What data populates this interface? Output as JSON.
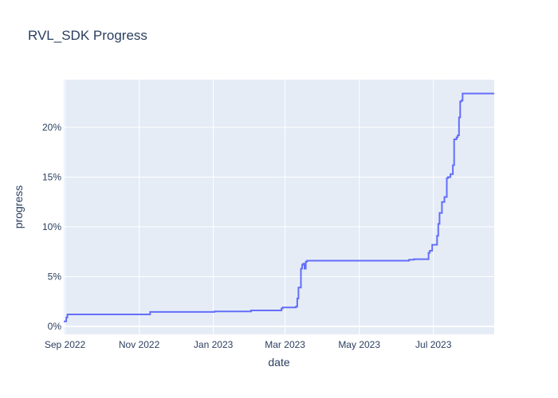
{
  "chart_data": {
    "type": "line",
    "title": "RVL_SDK Progress",
    "xlabel": "date",
    "ylabel": "progress",
    "grid": true,
    "legend": "none",
    "line_shape": "step",
    "colors": {
      "line": "#636efa",
      "plot_bg": "#e5ecf6",
      "grid": "#ffffff",
      "text": "#2a3f5f"
    },
    "x_ticks": [
      {
        "value": "2022-09-01",
        "label": "Sep 2022"
      },
      {
        "value": "2022-11-01",
        "label": "Nov 2022"
      },
      {
        "value": "2023-01-01",
        "label": "Jan 2023"
      },
      {
        "value": "2023-03-01",
        "label": "Mar 2023"
      },
      {
        "value": "2023-05-01",
        "label": "May 2023"
      },
      {
        "value": "2023-07-01",
        "label": "Jul 2023"
      }
    ],
    "xlim": [
      "2022-08-31",
      "2023-08-20"
    ],
    "y_ticks": [
      {
        "value": 0,
        "label": "0%"
      },
      {
        "value": 5,
        "label": "5%"
      },
      {
        "value": 10,
        "label": "10%"
      },
      {
        "value": 15,
        "label": "15%"
      },
      {
        "value": 20,
        "label": "20%"
      }
    ],
    "ylim": [
      -0.8,
      24.8
    ],
    "series": [
      {
        "x": [
          "2022-08-31",
          "2022-09-02",
          "2022-09-03",
          "2022-11-07",
          "2022-11-10",
          "2023-01-02",
          "2023-02-01",
          "2023-02-26",
          "2023-02-27",
          "2023-03-10",
          "2023-03-11",
          "2023-03-12",
          "2023-03-13",
          "2023-03-14",
          "2023-03-15",
          "2023-03-16",
          "2023-03-17",
          "2023-03-18",
          "2023-03-19",
          "2023-04-20",
          "2023-06-11",
          "2023-06-15",
          "2023-06-27",
          "2023-06-28",
          "2023-06-30",
          "2023-07-04",
          "2023-07-05",
          "2023-07-06",
          "2023-07-08",
          "2023-07-10",
          "2023-07-12",
          "2023-07-13",
          "2023-07-15",
          "2023-07-17",
          "2023-07-18",
          "2023-07-19",
          "2023-07-20",
          "2023-07-21",
          "2023-07-22",
          "2023-07-23",
          "2023-07-24",
          "2023-07-25",
          "2023-07-26",
          "2023-07-27",
          "2023-07-28",
          "2023-07-29",
          "2023-08-20"
        ],
        "y": [
          0.5,
          0.9,
          1.2,
          1.2,
          1.45,
          1.5,
          1.6,
          1.8,
          1.9,
          2.0,
          2.8,
          3.9,
          3.9,
          5.8,
          6.2,
          6.3,
          5.8,
          6.5,
          6.6,
          6.6,
          6.7,
          6.75,
          7.4,
          7.6,
          8.2,
          9.1,
          10.3,
          11.4,
          12.5,
          13.0,
          14.9,
          15.0,
          15.3,
          16.2,
          18.8,
          18.8,
          19.0,
          19.2,
          21.0,
          22.6,
          22.7,
          23.4,
          23.4,
          23.4,
          23.4,
          23.4,
          23.4
        ]
      }
    ]
  }
}
